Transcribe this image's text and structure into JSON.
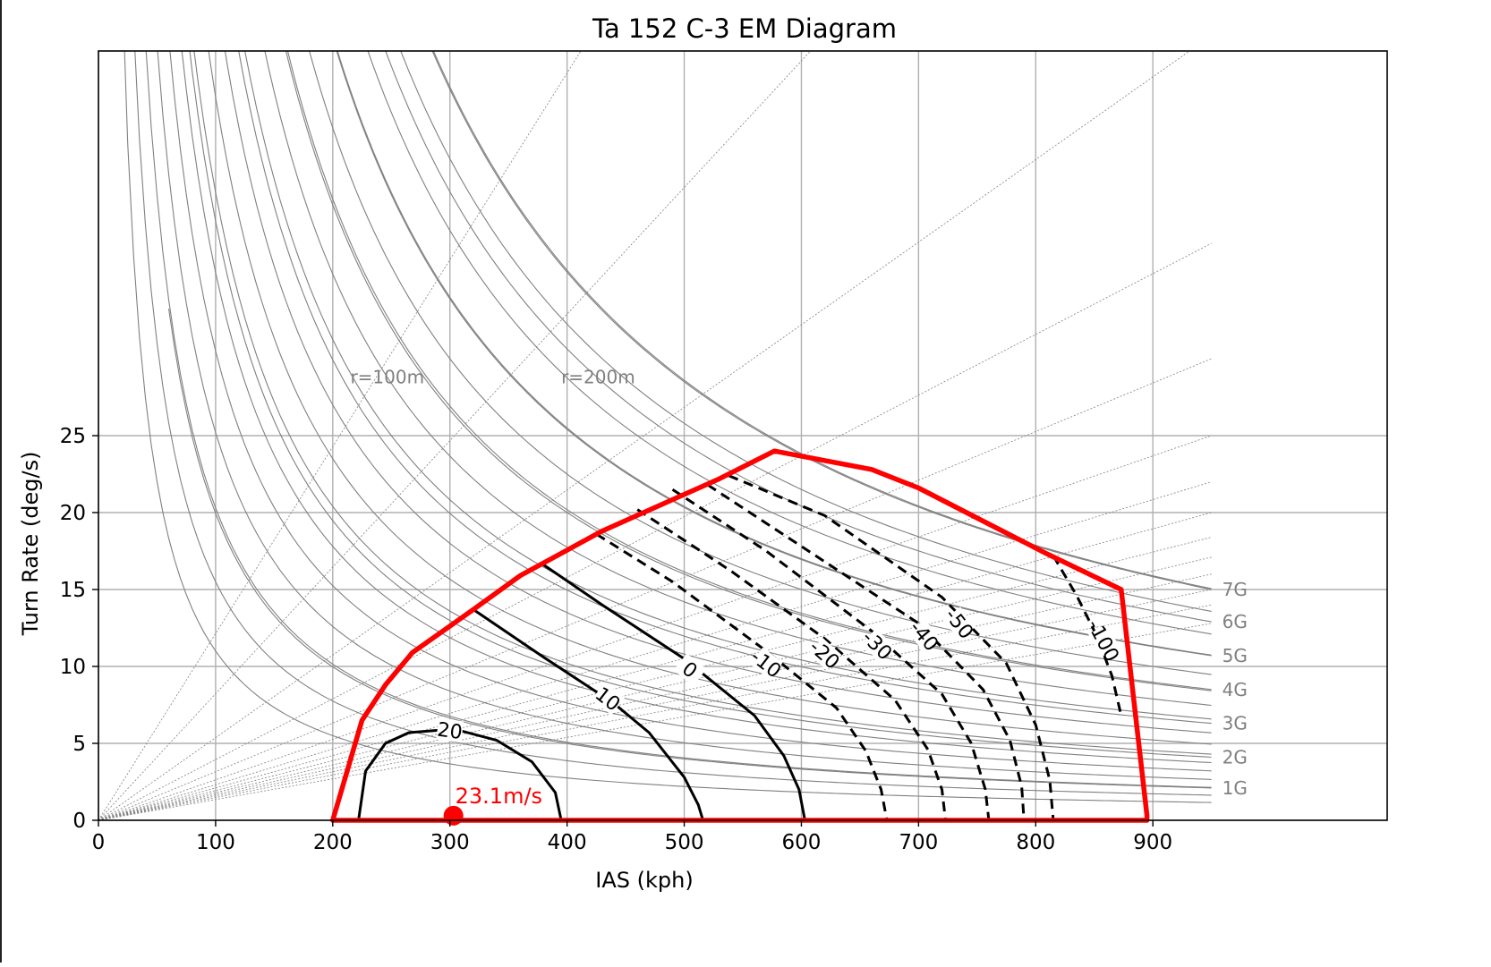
{
  "chart_data": {
    "type": "line",
    "title": "Ta 152 C-3 EM Diagram",
    "xlabel": "IAS (kph)",
    "ylabel": "Turn Rate (deg/s)",
    "xlim": [
      0,
      1100
    ],
    "ylim": [
      0,
      50
    ],
    "xticks": [
      0,
      100,
      200,
      300,
      400,
      500,
      600,
      700,
      800,
      900
    ],
    "yticks": [
      0,
      5,
      10,
      15,
      20,
      25
    ],
    "grid": true,
    "colors": {
      "envelope": "#ff0000",
      "contour": "#000000",
      "reference": "#808080",
      "grid": "#b0b0b0"
    },
    "envelope": {
      "x": [
        200,
        225,
        245,
        268,
        320,
        360,
        430,
        530,
        577,
        660,
        700,
        810,
        873,
        895,
        895,
        200,
        200
      ],
      "y": [
        0,
        6.5,
        8.8,
        10.9,
        13.7,
        15.9,
        18.8,
        22.2,
        24.0,
        22.8,
        21.6,
        17.3,
        15.0,
        0.3,
        0,
        0,
        0
      ]
    },
    "specific_excess_power": {
      "value": 23.1,
      "label": "23.1m/s",
      "x": 303,
      "y": 0.3
    },
    "turn_radius_labels": [
      {
        "label": "r=100m",
        "x": 215,
        "y": 28.4
      },
      {
        "label": "r=200m",
        "x": 395,
        "y": 28.4
      }
    ],
    "g_labels": [
      "7G",
      "6G",
      "5G",
      "4G",
      "3G",
      "2G",
      "1G"
    ],
    "g_curves": [
      {
        "g": 7,
        "label": "7G",
        "y_end": 15.0
      },
      {
        "g": 6,
        "label": "6G",
        "y_end": 12.9
      },
      {
        "g": 5,
        "label": "5G",
        "y_end": 10.7
      },
      {
        "g": 4,
        "label": "4G",
        "y_end": 8.5
      },
      {
        "g": 3,
        "label": "3G",
        "y_end": 6.3
      },
      {
        "g": 2,
        "label": "2G",
        "y_end": 4.1
      },
      {
        "g": 1,
        "label": "1G",
        "y_end": 2.1
      }
    ],
    "contours": [
      {
        "level": 20,
        "label": "20",
        "style": "solid",
        "x": [
          222,
          228,
          245,
          265,
          290,
          310,
          340,
          370,
          390,
          395
        ],
        "y": [
          0,
          3.2,
          5.0,
          5.7,
          5.85,
          5.8,
          5.2,
          3.8,
          1.8,
          0
        ]
      },
      {
        "level": 10,
        "label": "10",
        "style": "solid",
        "x": [
          320,
          380,
          440,
          470,
          500,
          512,
          516
        ],
        "y": [
          13.7,
          10.6,
          7.6,
          5.7,
          2.8,
          1.0,
          0
        ]
      },
      {
        "level": 0,
        "label": "0",
        "style": "solid",
        "x": [
          380,
          430,
          500,
          560,
          585,
          598,
          603
        ],
        "y": [
          16.6,
          14.0,
          10.5,
          6.8,
          4.2,
          2.0,
          0
        ]
      },
      {
        "level": -10,
        "label": "-10",
        "style": "dashed",
        "x": [
          425,
          490,
          570,
          630,
          655,
          668,
          673
        ],
        "y": [
          18.6,
          15.5,
          11.0,
          7.3,
          4.5,
          2.0,
          0
        ]
      },
      {
        "level": -20,
        "label": "-20",
        "style": "dashed",
        "x": [
          460,
          540,
          620,
          680,
          708,
          720,
          723
        ],
        "y": [
          20.2,
          16.2,
          11.8,
          7.8,
          4.6,
          2.0,
          0
        ]
      },
      {
        "level": -30,
        "label": "-30",
        "style": "dashed",
        "x": [
          490,
          570,
          660,
          720,
          745,
          757,
          760
        ],
        "y": [
          21.5,
          17.5,
          12.3,
          8.2,
          5.0,
          2.0,
          0
        ]
      },
      {
        "level": -40,
        "label": "-40",
        "style": "dashed",
        "x": [
          520,
          600,
          700,
          755,
          778,
          788,
          790
        ],
        "y": [
          21.8,
          17.8,
          12.8,
          8.5,
          5.2,
          2.2,
          0
        ]
      },
      {
        "level": -50,
        "label": "-50",
        "style": "dashed",
        "x": [
          538,
          620,
          720,
          775,
          800,
          812,
          815
        ],
        "y": [
          22.4,
          19.8,
          14.5,
          10.2,
          6.2,
          2.6,
          0
        ]
      },
      {
        "level": -100,
        "label": "-100",
        "style": "dashed",
        "x": [
          815,
          835,
          852,
          865,
          873
        ],
        "y": [
          17.2,
          14.6,
          12.0,
          9.4,
          6.8
        ]
      }
    ]
  }
}
